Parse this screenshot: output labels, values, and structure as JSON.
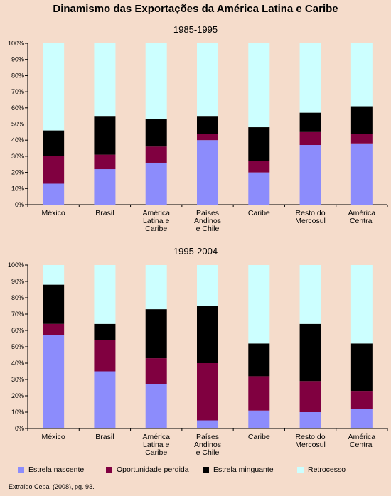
{
  "title": "Dinamismo das Exportações da América Latina e Caribe",
  "source": "Extraído Cepal (2008), pg. 93.",
  "legend": [
    {
      "name": "Estrela nascente",
      "color": "#8c8cfc"
    },
    {
      "name": "Oportunidade perdida",
      "color": "#800040"
    },
    {
      "name": "Estrela minguante",
      "color": "#000000"
    },
    {
      "name": "Retrocesso",
      "color": "#ccffff"
    }
  ],
  "chart_data": [
    {
      "type": "bar",
      "stacked": true,
      "title": "1985-1995",
      "categories": [
        "México",
        "Brasil",
        "América Latina e Caribe",
        "Países Andinos e Chile",
        "Caribe",
        "Resto do Mercosul",
        "América Central"
      ],
      "category_lines": [
        [
          "México"
        ],
        [
          "Brasil"
        ],
        [
          "América",
          "Latina e",
          "Caribe"
        ],
        [
          "Países",
          "Andinos",
          "e Chile"
        ],
        [
          "Caribe"
        ],
        [
          "Resto do",
          "Mercosul"
        ],
        [
          "América",
          "Central"
        ]
      ],
      "y_ticks": [
        "0%",
        "10%",
        "20%",
        "30%",
        "40%",
        "50%",
        "60%",
        "70%",
        "80%",
        "90%",
        "100%"
      ],
      "ylim": [
        0,
        100
      ],
      "series": [
        {
          "name": "Estrela nascente",
          "values": [
            13,
            22,
            26,
            40,
            20,
            37,
            38
          ]
        },
        {
          "name": "Oportunidade perdida",
          "values": [
            17,
            9,
            10,
            4,
            7,
            8,
            6
          ]
        },
        {
          "name": "Estrela minguante",
          "values": [
            16,
            24,
            17,
            11,
            21,
            12,
            17
          ]
        },
        {
          "name": "Retrocesso",
          "values": [
            54,
            45,
            47,
            45,
            52,
            43,
            39
          ]
        }
      ]
    },
    {
      "type": "bar",
      "stacked": true,
      "title": "1995-2004",
      "categories": [
        "México",
        "Brasil",
        "América Latina e Caribe",
        "Países Andinos e Chile",
        "Caribe",
        "Resto do Mercosul",
        "América Central"
      ],
      "category_lines": [
        [
          "México"
        ],
        [
          "Brasil"
        ],
        [
          "América",
          "Latina e",
          "Caribe"
        ],
        [
          "Países",
          "Andinos",
          "e Chile"
        ],
        [
          "Caribe"
        ],
        [
          "Resto do",
          "Mercosul"
        ],
        [
          "América",
          "Central"
        ]
      ],
      "y_ticks": [
        "0%",
        "10%",
        "20%",
        "30%",
        "40%",
        "50%",
        "60%",
        "70%",
        "80%",
        "90%",
        "100%"
      ],
      "ylim": [
        0,
        100
      ],
      "series": [
        {
          "name": "Estrela nascente",
          "values": [
            57,
            35,
            27,
            5,
            11,
            10,
            12
          ]
        },
        {
          "name": "Oportunidade perdida",
          "values": [
            7,
            19,
            16,
            35,
            21,
            19,
            11
          ]
        },
        {
          "name": "Estrela minguante",
          "values": [
            24,
            10,
            30,
            35,
            20,
            35,
            29
          ]
        },
        {
          "name": "Retrocesso",
          "values": [
            12,
            36,
            27,
            25,
            48,
            36,
            48
          ]
        }
      ]
    }
  ]
}
